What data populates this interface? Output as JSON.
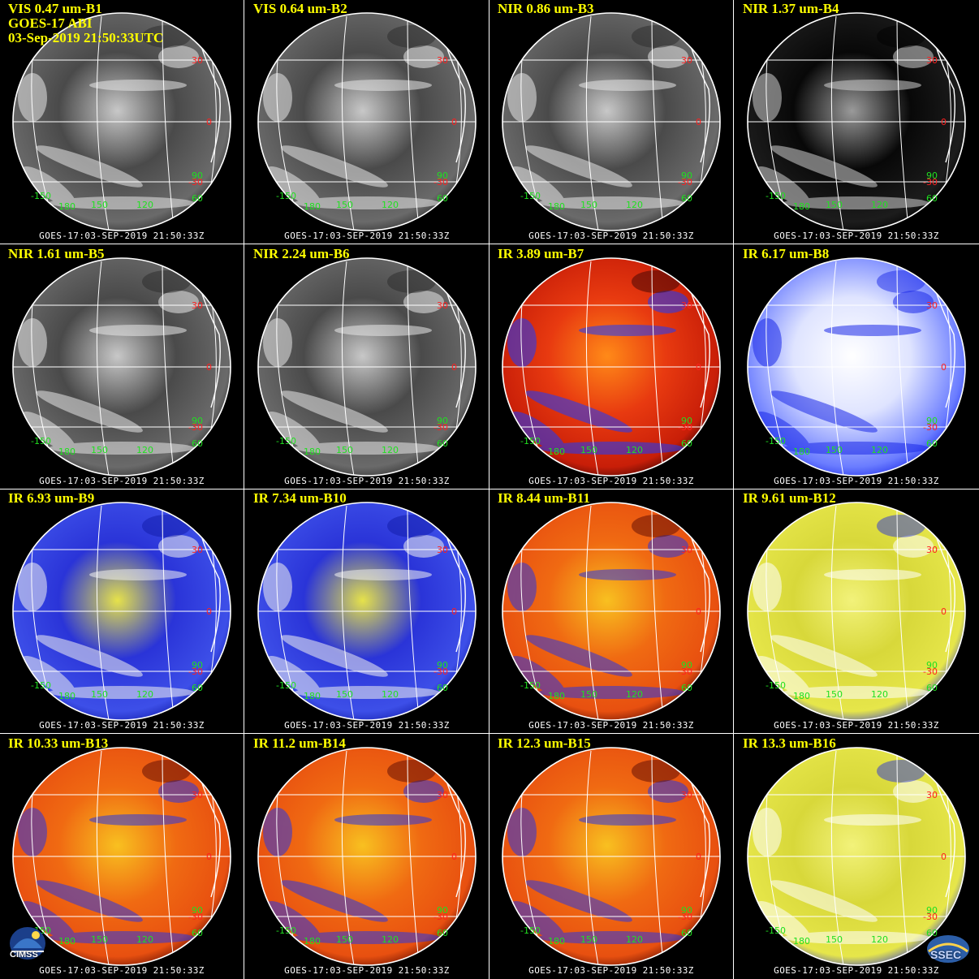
{
  "header": {
    "sensor": "GOES-17 ABI",
    "datetime": "03-Sep-2019 21:50:33UTC"
  },
  "footer_text": "GOES-17:03-SEP-2019 21:50:33Z",
  "panels": [
    {
      "label": "VIS 0.47 um-B1",
      "scheme": "gray"
    },
    {
      "label": "VIS 0.64 um-B2",
      "scheme": "gray"
    },
    {
      "label": "NIR 0.86 um-B3",
      "scheme": "gray"
    },
    {
      "label": "NIR 1.37 um-B4",
      "scheme": "dark"
    },
    {
      "label": "NIR 1.61 um-B5",
      "scheme": "gray"
    },
    {
      "label": "NIR 2.24 um-B6",
      "scheme": "gray"
    },
    {
      "label": "IR 3.89 um-B7",
      "scheme": "redhot"
    },
    {
      "label": "IR 6.17 um-B8",
      "scheme": "whiteblue"
    },
    {
      "label": "IR 6.93 um-B9",
      "scheme": "blueyellow"
    },
    {
      "label": "IR 7.34 um-B10",
      "scheme": "blueyellow"
    },
    {
      "label": "IR 8.44 um-B11",
      "scheme": "orange"
    },
    {
      "label": "IR 9.61 um-B12",
      "scheme": "yellowblue"
    },
    {
      "label": "IR 10.33 um-B13",
      "scheme": "orange"
    },
    {
      "label": "IR 11.2 um-B14",
      "scheme": "orange"
    },
    {
      "label": "IR 12.3 um-B15",
      "scheme": "orange"
    },
    {
      "label": "IR 13.3 um-B16",
      "scheme": "yellowblue"
    }
  ],
  "grid_labels": {
    "lat_30": "30",
    "lat_0": "0",
    "lat_m30": "-30",
    "lon_m150": "-150",
    "lon_180": "180",
    "lon_150": "150",
    "lon_120": "120",
    "lon_90": "90",
    "lon_60": "60"
  },
  "colors": {
    "title": "#ffff00",
    "lat_label": "#ff2020",
    "lon_label": "#20e020",
    "grid": "#ffffff"
  },
  "logos": {
    "left": "CIMSS",
    "right": "SSEC"
  }
}
